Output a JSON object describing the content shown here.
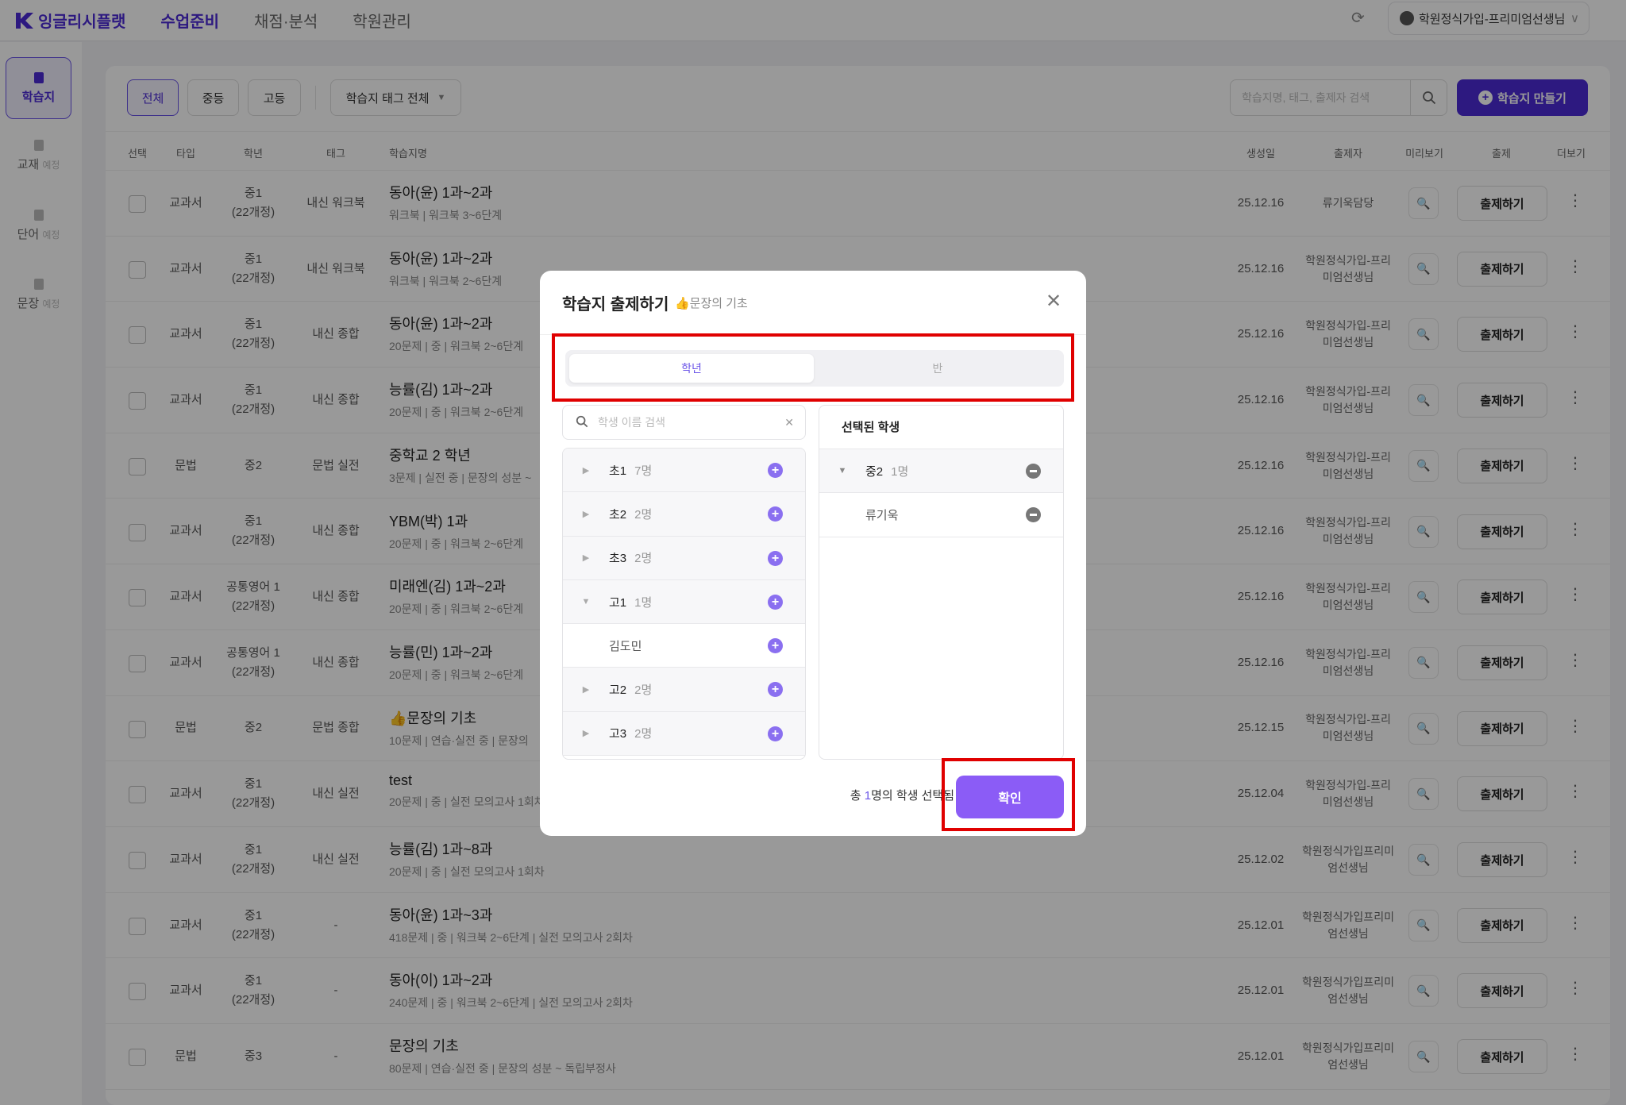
{
  "header": {
    "logo": "잉글리시플랫",
    "nav": [
      "수업준비",
      "채점·분석",
      "학원관리"
    ],
    "user": "학원정식가입-프리미엄선생님"
  },
  "sidebar": {
    "items": [
      {
        "label": "학습지",
        "badge": ""
      },
      {
        "label": "교재",
        "badge": "예정"
      },
      {
        "label": "단어",
        "badge": "예정"
      },
      {
        "label": "문장",
        "badge": "예정"
      }
    ]
  },
  "filters": {
    "all": "전체",
    "middle": "중등",
    "high": "고등",
    "tag": "학습지 태그 전체"
  },
  "search": {
    "placeholder": "학습지명, 태그, 출제자 검색"
  },
  "create_label": "학습지 만들기",
  "columns": {
    "select": "선택",
    "type": "타입",
    "grade": "학년",
    "tag": "태그",
    "name": "학습지명",
    "date": "생성일",
    "author": "출제자",
    "preview": "미리보기",
    "assign": "출제",
    "more": "더보기"
  },
  "assign_label": "출제하기",
  "rows": [
    {
      "type": "교과서",
      "grade": "중1",
      "grade_sub": "(22개정)",
      "tag": "내신 워크북",
      "title": "동아(윤) 1과~2과",
      "sub": "워크북 | 워크북 3~6단계",
      "date": "25.12.16",
      "author": "류기욱담당"
    },
    {
      "type": "교과서",
      "grade": "중1",
      "grade_sub": "(22개정)",
      "tag": "내신 워크북",
      "title": "동아(윤) 1과~2과",
      "sub": "워크북 | 워크북 2~6단계",
      "date": "25.12.16",
      "author": "학원정식가입-프리미엄선생님"
    },
    {
      "type": "교과서",
      "grade": "중1",
      "grade_sub": "(22개정)",
      "tag": "내신 종합",
      "title": "동아(윤) 1과~2과",
      "sub": "20문제 | 중 | 워크북 2~6단계",
      "date": "25.12.16",
      "author": "학원정식가입-프리미엄선생님"
    },
    {
      "type": "교과서",
      "grade": "중1",
      "grade_sub": "(22개정)",
      "tag": "내신 종합",
      "title": "능률(김) 1과~2과",
      "sub": "20문제 | 중 | 워크북 2~6단계",
      "date": "25.12.16",
      "author": "학원정식가입-프리미엄선생님"
    },
    {
      "type": "문법",
      "grade": "중2",
      "grade_sub": "",
      "tag": "문법 실전",
      "title": "중학교 2 학년",
      "sub": "3문제 | 실전 중 | 문장의 성분 ~",
      "date": "25.12.16",
      "author": "학원정식가입-프리미엄선생님"
    },
    {
      "type": "교과서",
      "grade": "중1",
      "grade_sub": "(22개정)",
      "tag": "내신 종합",
      "title": "YBM(박) 1과",
      "sub": "20문제 | 중 | 워크북 2~6단계",
      "date": "25.12.16",
      "author": "학원정식가입-프리미엄선생님"
    },
    {
      "type": "교과서",
      "grade": "공통영어 1",
      "grade_sub": "(22개정)",
      "tag": "내신 종합",
      "title": "미래엔(김) 1과~2과",
      "sub": "20문제 | 중 | 워크북 2~6단계",
      "date": "25.12.16",
      "author": "학원정식가입-프리미엄선생님"
    },
    {
      "type": "교과서",
      "grade": "공통영어 1",
      "grade_sub": "(22개정)",
      "tag": "내신 종합",
      "title": "능률(민) 1과~2과",
      "sub": "20문제 | 중 | 워크북 2~6단계",
      "date": "25.12.16",
      "author": "학원정식가입-프리미엄선생님"
    },
    {
      "type": "문법",
      "grade": "중2",
      "grade_sub": "",
      "tag": "문법 종합",
      "title": "👍문장의 기초",
      "sub": "10문제 | 연습·실전 중 | 문장의",
      "date": "25.12.15",
      "author": "학원정식가입-프리미엄선생님"
    },
    {
      "type": "교과서",
      "grade": "중1",
      "grade_sub": "(22개정)",
      "tag": "내신 실전",
      "title": "test",
      "sub": "20문제 | 중 | 실전 모의고사 1회차",
      "date": "25.12.04",
      "author": "학원정식가입-프리미엄선생님"
    },
    {
      "type": "교과서",
      "grade": "중1",
      "grade_sub": "(22개정)",
      "tag": "내신 실전",
      "title": "능률(김) 1과~8과",
      "sub": "20문제 | 중 | 실전 모의고사 1회차",
      "date": "25.12.02",
      "author": "학원정식가입프리미엄선생님"
    },
    {
      "type": "교과서",
      "grade": "중1",
      "grade_sub": "(22개정)",
      "tag": "-",
      "title": "동아(윤) 1과~3과",
      "sub": "418문제 | 중 | 워크북 2~6단계 | 실전 모의고사 2회차",
      "date": "25.12.01",
      "author": "학원정식가입프리미엄선생님"
    },
    {
      "type": "교과서",
      "grade": "중1",
      "grade_sub": "(22개정)",
      "tag": "-",
      "title": "동아(이) 1과~2과",
      "sub": "240문제 | 중 | 워크북 2~6단계 | 실전 모의고사 2회차",
      "date": "25.12.01",
      "author": "학원정식가입프리미엄선생님"
    },
    {
      "type": "문법",
      "grade": "중3",
      "grade_sub": "",
      "tag": "-",
      "title": "문장의 기초",
      "sub": "80문제 | 연습·실전 중 | 문장의 성분 ~ 독립부정사",
      "date": "25.12.01",
      "author": "학원정식가입프리미엄선생님"
    }
  ],
  "modal": {
    "title": "학습지 출제하기",
    "subtitle": "👍문장의 기초",
    "tabs": [
      "학년",
      "반"
    ],
    "active_tab": "학년",
    "student_search_placeholder": "학생 이름 검색",
    "groups": [
      {
        "name": "초1",
        "count": "7명",
        "expanded": false
      },
      {
        "name": "초2",
        "count": "2명",
        "expanded": false
      },
      {
        "name": "초3",
        "count": "2명",
        "expanded": false
      },
      {
        "name": "고1",
        "count": "1명",
        "expanded": true,
        "students": [
          "김도민"
        ]
      },
      {
        "name": "고2",
        "count": "2명",
        "expanded": false
      },
      {
        "name": "고3",
        "count": "2명",
        "expanded": false
      }
    ],
    "selected_header": "선택된 학생",
    "selected": [
      {
        "name": "중2",
        "count": "1명",
        "students": [
          "류기욱"
        ]
      }
    ],
    "footer_prefix": "총 ",
    "footer_count": "1",
    "footer_suffix": "명의 학생 선택됨",
    "confirm": "확인"
  },
  "colors": {
    "brand": "#4b2bd6",
    "accent": "#8b5cf6",
    "highlight": "#e00000"
  }
}
